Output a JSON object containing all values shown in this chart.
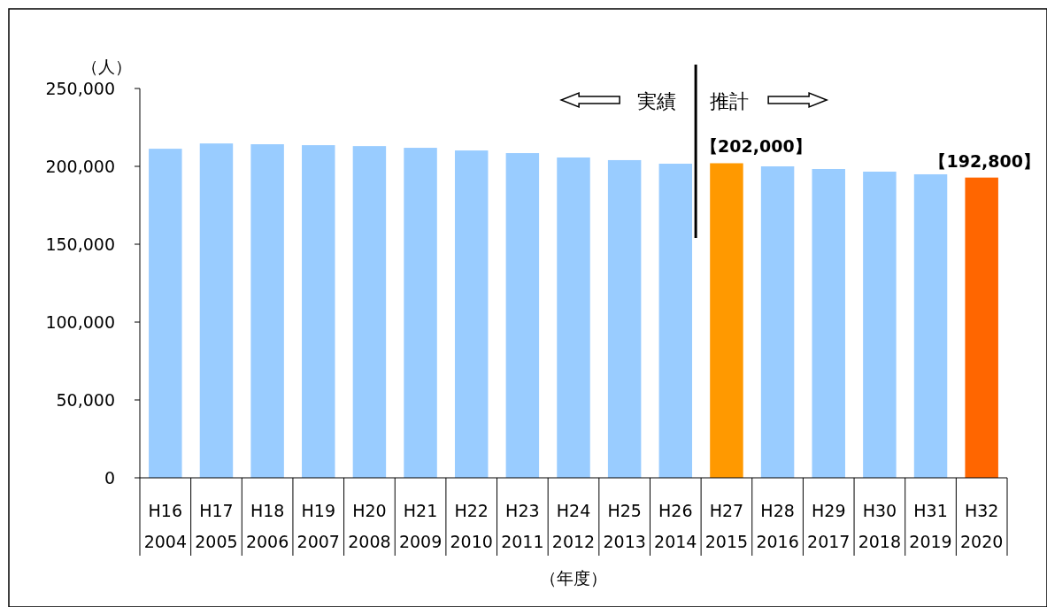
{
  "chart_data": {
    "type": "bar",
    "ylabel": "（人）",
    "xlabel": "（年度）",
    "categories": [
      "H16\n2004",
      "H17\n2005",
      "H18\n2006",
      "H19\n2007",
      "H20\n2008",
      "H21\n2009",
      "H22\n2010",
      "H23\n2011",
      "H24\n2012",
      "H25\n2013",
      "H26\n2014",
      "H27\n2015",
      "H28\n2016",
      "H29\n2017",
      "H30\n2018",
      "H31\n2019",
      "H32\n2020"
    ],
    "values": [
      211300,
      214700,
      214200,
      213600,
      213000,
      211900,
      210200,
      208500,
      205700,
      204000,
      201700,
      202000,
      200000,
      198300,
      196600,
      194900,
      192800
    ],
    "colors": [
      "#99ccff",
      "#99ccff",
      "#99ccff",
      "#99ccff",
      "#99ccff",
      "#99ccff",
      "#99ccff",
      "#99ccff",
      "#99ccff",
      "#99ccff",
      "#99ccff",
      "#ff9900",
      "#99ccff",
      "#99ccff",
      "#99ccff",
      "#99ccff",
      "#ff6600"
    ],
    "value_labels": [
      null,
      null,
      null,
      null,
      null,
      null,
      null,
      null,
      null,
      null,
      null,
      "【202,000】",
      null,
      null,
      null,
      null,
      "【192,800】"
    ],
    "ylim": [
      0,
      250000
    ],
    "yticks": [
      0,
      {
        "value": 50000,
        "label": "50,000"
      },
      {
        "value": 100000,
        "label": "100,000"
      },
      {
        "value": 150000,
        "label": "150,000"
      },
      {
        "value": 200000,
        "label": "200,000"
      },
      {
        "value": 250000,
        "label": "250,000"
      }
    ],
    "annotations": [
      "実績",
      "推計"
    ],
    "grid": false
  }
}
